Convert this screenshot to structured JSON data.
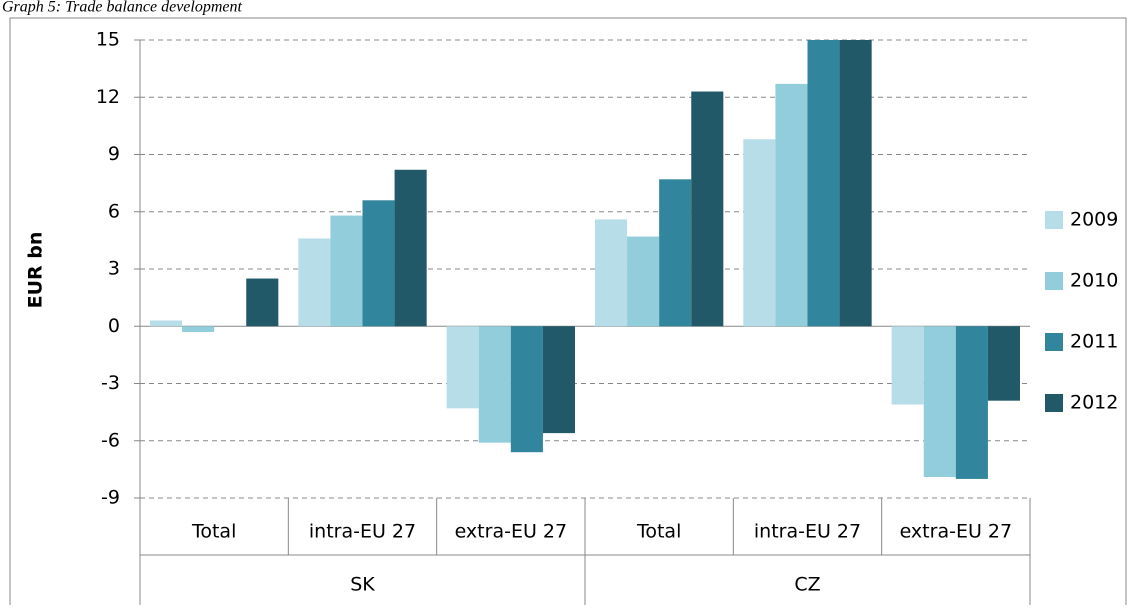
{
  "chart_data": {
    "type": "bar",
    "title": "Graph 5: Trade balance development",
    "y_label": "EUR bn",
    "category_groups": [
      {
        "label": "SK",
        "categories": [
          "Total",
          "intra-EU 27",
          "extra-EU 27"
        ]
      },
      {
        "label": "CZ",
        "categories": [
          "Total",
          "intra-EU 27",
          "extra-EU 27"
        ]
      }
    ],
    "series": [
      {
        "name": "2009",
        "color": "#b7dde8",
        "values": [
          0.3,
          4.6,
          -4.3,
          5.6,
          9.8,
          -4.1
        ]
      },
      {
        "name": "2010",
        "color": "#92cddc",
        "values": [
          -0.3,
          5.8,
          -6.1,
          4.7,
          12.7,
          -7.9
        ]
      },
      {
        "name": "2011",
        "color": "#31859c",
        "values": [
          0,
          6.6,
          -6.6,
          7.7,
          15,
          -8.0
        ]
      },
      {
        "name": "2012",
        "color": "#215968",
        "values": [
          2.5,
          8.2,
          -5.6,
          12.3,
          15,
          -3.9
        ]
      }
    ],
    "ylim": [
      -9,
      15
    ],
    "yticks": [
      -9,
      -6,
      -3,
      0,
      3,
      6,
      9,
      12,
      15
    ],
    "grid": true,
    "legend": "right"
  }
}
